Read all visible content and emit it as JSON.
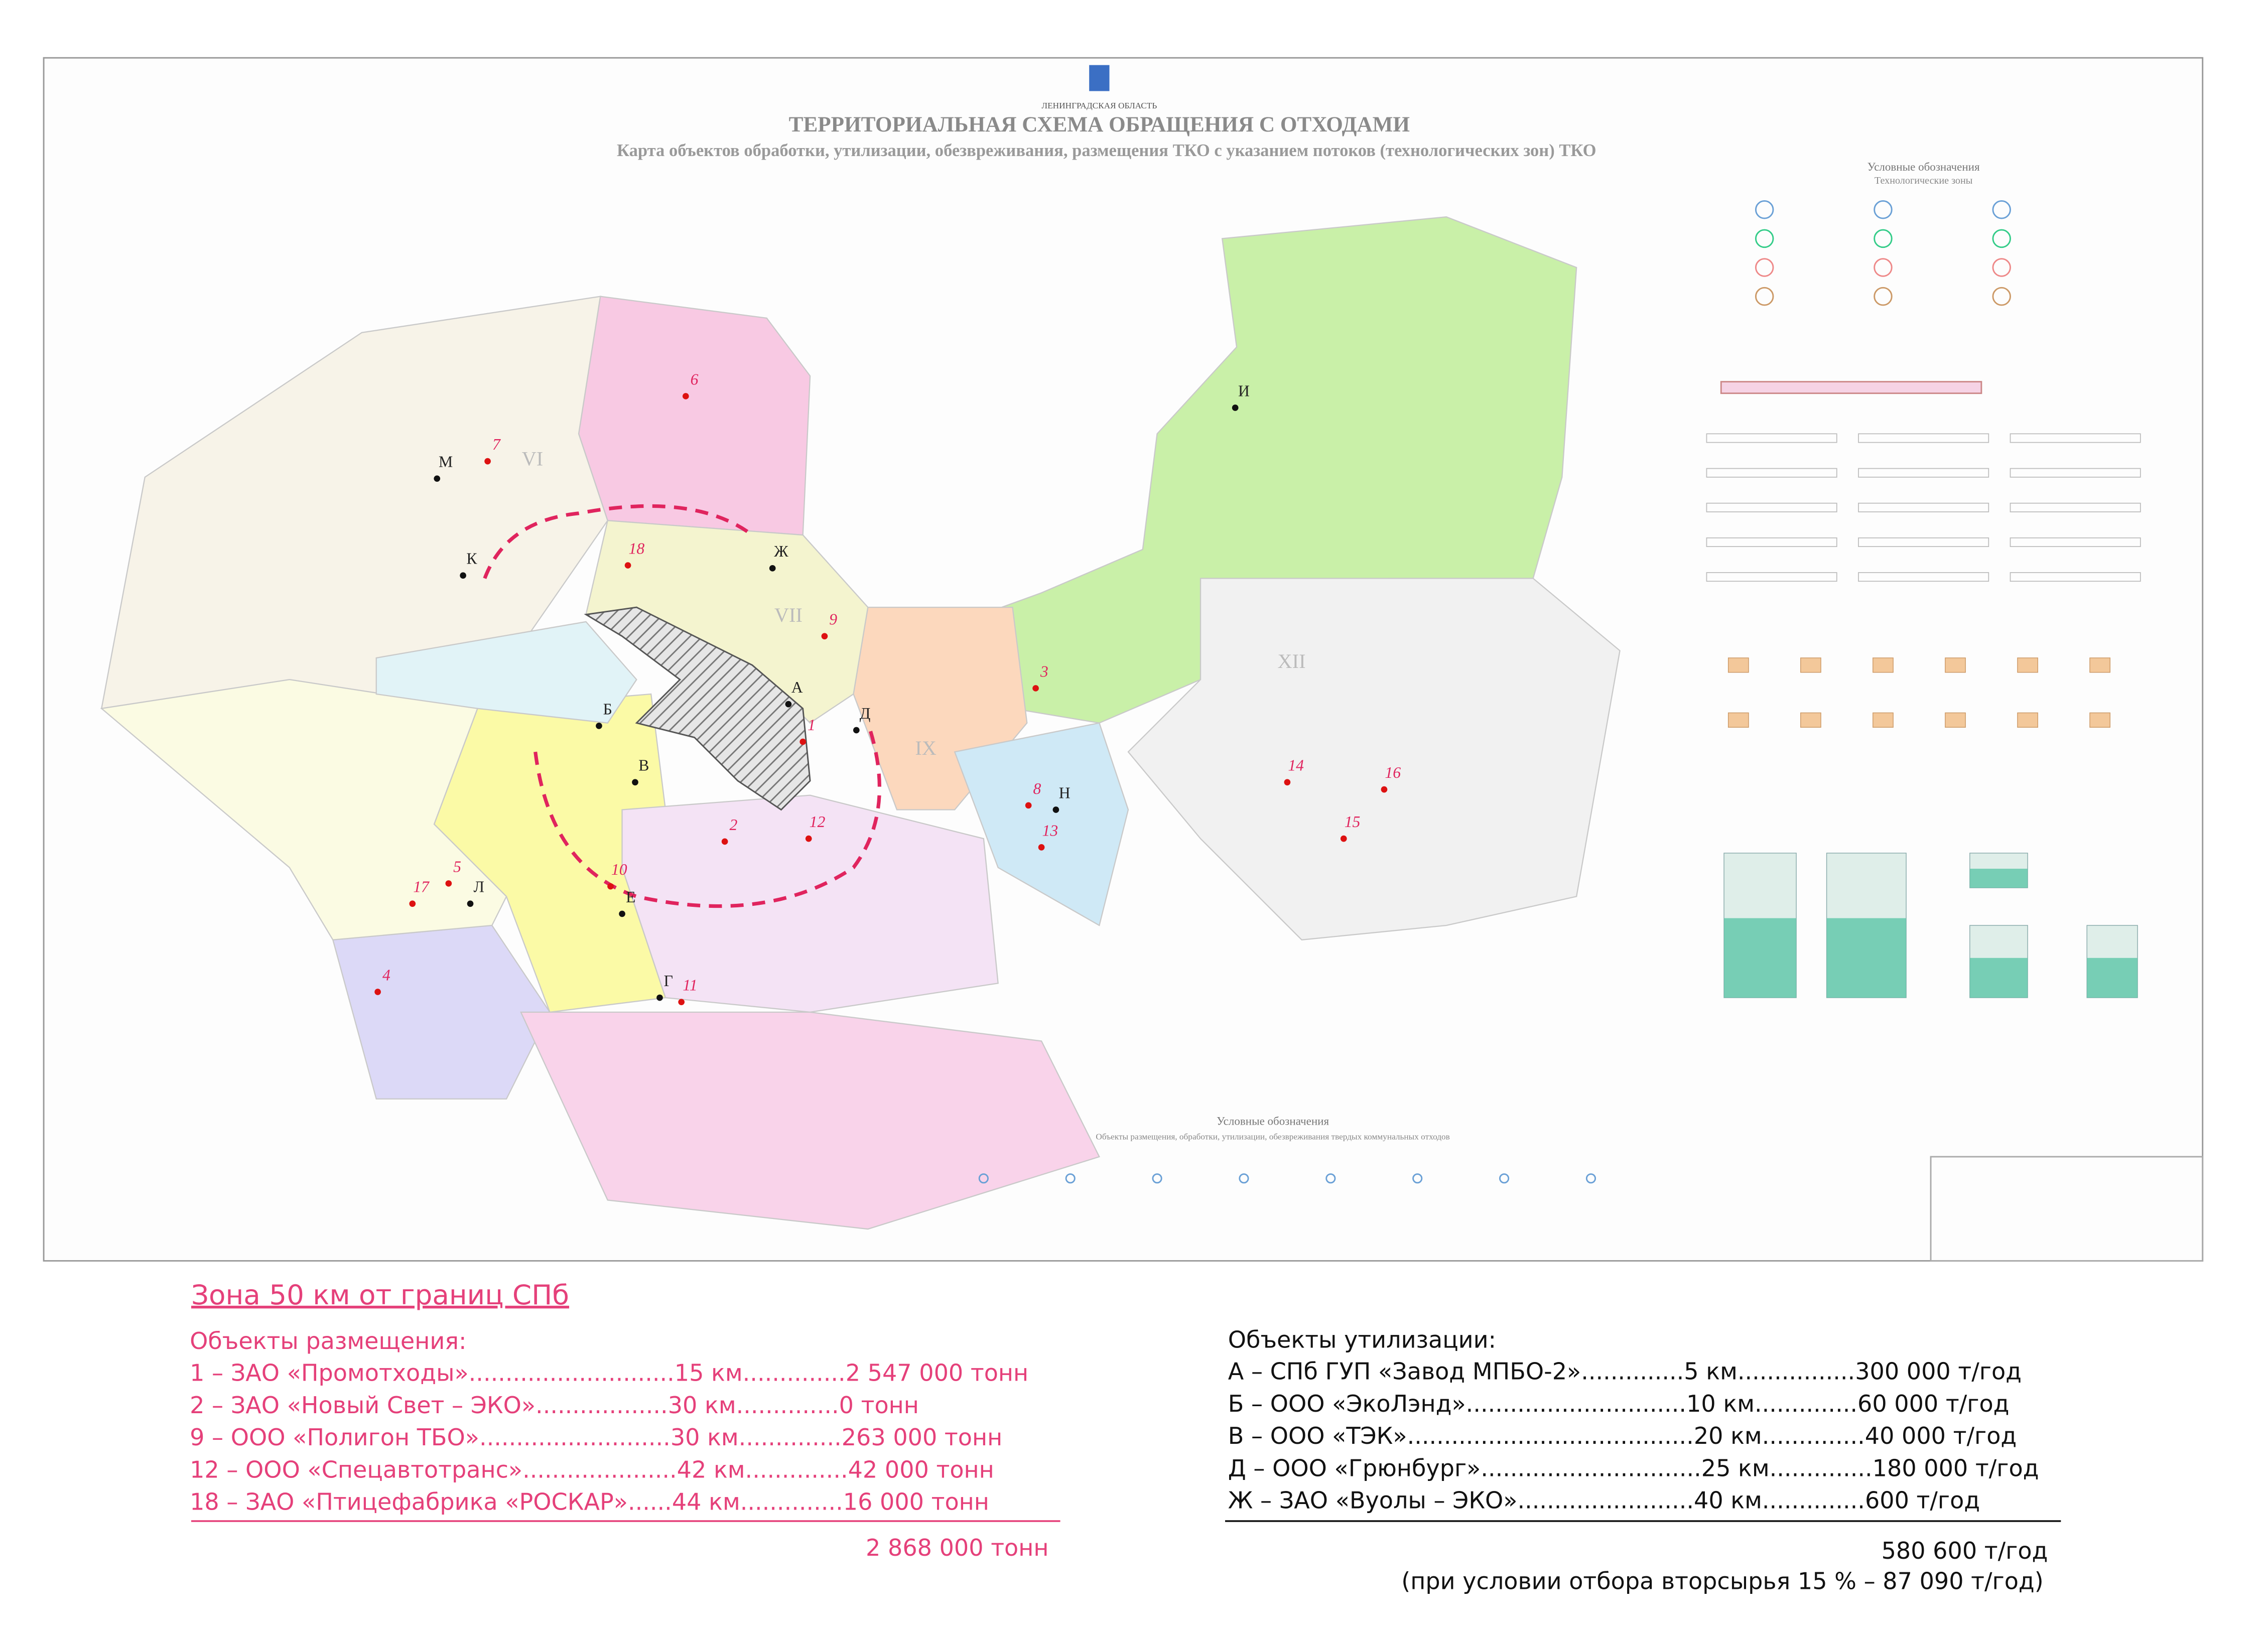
{
  "header": {
    "region": "ЛЕНИНГРАДСКАЯ ОБЛАСТЬ",
    "title": "ТЕРРИТОРИАЛЬНАЯ СХЕМА ОБРАЩЕНИЯ С ОТХОДАМИ",
    "subtitle": "Карта объектов обработки, утилизации, обезвреживания,  размещения ТКО с указанием потоков (технологических зон) ТКО"
  },
  "map": {
    "labels": [
      "М",
      "7",
      "VI",
      "6",
      "К",
      "18",
      "Ж",
      "9",
      "А",
      "Б",
      "1",
      "Д",
      "IX",
      "3",
      "И",
      "В",
      "2",
      "12",
      "8",
      "Н",
      "13",
      "14",
      "16",
      "15",
      "XII",
      "5",
      "17",
      "Л",
      "10",
      "Е",
      "4",
      "Г",
      "11",
      "VII"
    ]
  },
  "legend": {
    "title": "Условные обозначения",
    "subtitle": "Технологические зоны"
  },
  "bottom_legend": {
    "title": "Условные обозначения",
    "subtitle": "Объекты размещения, обработки, утилизации, обезвреживания твердых коммунальных отходов"
  },
  "zone50": {
    "title": "Зона 50 км от границ СПб",
    "heading": "Объекты размещения:",
    "rows": [
      "1 – ЗАО «Промотходы»............................15 км..............2 547 000 тонн",
      "2 – ЗАО «Новый Свет – ЭКО»..................30 км..............0 тонн",
      "9 – ООО «Полигон ТБО»..........................30 км..............263 000 тонн",
      "12 – ООО «Спецавтотранс».....................42 км..............42 000 тонн",
      "18 – ЗАО «Птицефабрика «РОСКАР»......44 км..............16 000 тонн"
    ],
    "total": "2 868 000 тонн"
  },
  "utilization": {
    "heading": "Объекты утилизации:",
    "rows": [
      "А – СПб ГУП «Завод МПБО-2»..............5 км................300 000 т/год",
      "Б – ООО «ЭкоЛэнд»..............................10 км..............60 000 т/год",
      "В – ООО «ТЭК».......................................20 км..............40 000 т/год",
      "Д – ООО «Грюнбург»..............................25 км..............180 000 т/год",
      "Ж – ЗАО «Вуолы – ЭКО»........................40 км..............600 т/год"
    ],
    "total": "580 600 т/год",
    "note": "(при условии отбора вторсырья 15 % – 87 090 т/год)"
  }
}
